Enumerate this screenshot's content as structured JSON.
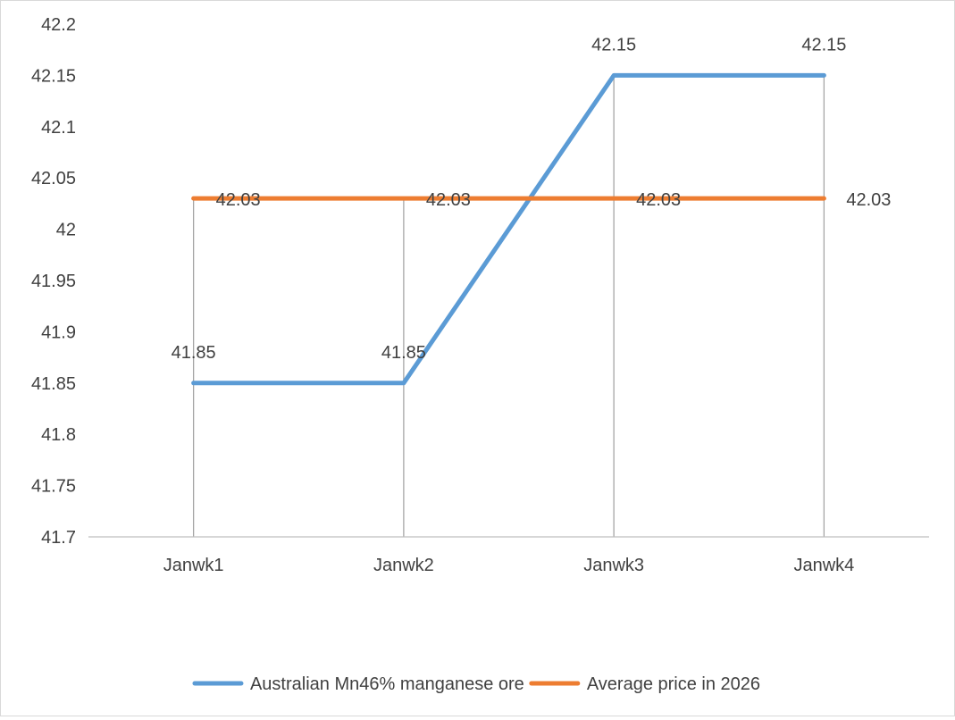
{
  "chart_data": {
    "type": "line",
    "title": "",
    "xlabel": "",
    "ylabel": "",
    "categories": [
      "Janwk1",
      "Janwk2",
      "Janwk3",
      "Janwk4"
    ],
    "ylim": [
      41.7,
      42.2
    ],
    "yticks": [
      41.7,
      41.75,
      41.8,
      41.85,
      41.9,
      41.95,
      42,
      42.05,
      42.1,
      42.15,
      42.2
    ],
    "grid": false,
    "drop_lines": true,
    "legend_position": "bottom",
    "series": [
      {
        "name": "Australian Mn46% manganese ore",
        "values": [
          41.85,
          41.85,
          42.15,
          42.15
        ],
        "data_labels": [
          "41.85",
          "41.85",
          "42.15",
          "42.15"
        ],
        "color": "#5b9bd5"
      },
      {
        "name": "Average price in 2026",
        "values": [
          42.03,
          42.03,
          42.03,
          42.03
        ],
        "data_labels": [
          "42.03",
          "42.03",
          "42.03",
          "42.03"
        ],
        "color": "#ed7d31"
      }
    ]
  }
}
